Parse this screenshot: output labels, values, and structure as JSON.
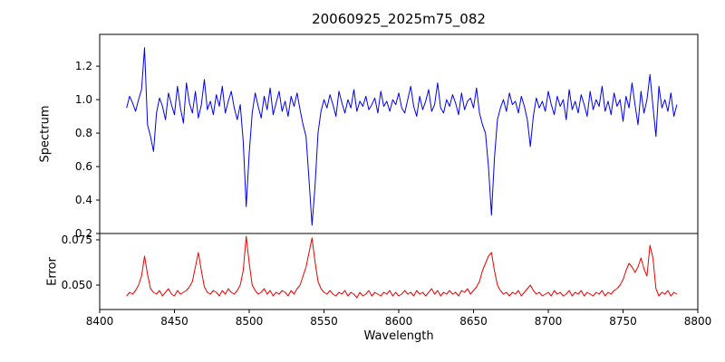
{
  "chart_data": {
    "type": "line",
    "title": "20060925_2025m75_082",
    "xlabel": "Wavelength",
    "xlim": [
      8400,
      8800
    ],
    "x_ticks": [
      8400,
      8450,
      8500,
      8550,
      8600,
      8650,
      8700,
      8750,
      8800
    ],
    "grid": false,
    "legend": "none",
    "panels": [
      {
        "name": "spectrum",
        "ylabel": "Spectrum",
        "ylim": [
          0.2,
          1.39
        ],
        "yticks": [
          0.2,
          0.4,
          0.6,
          0.8,
          1.0,
          1.2
        ],
        "ytick_labels": [
          "0.2",
          "0.4",
          "0.6",
          "0.8",
          "1.0",
          "1.2"
        ],
        "color": "#0000ee",
        "x_start": 8418,
        "x_step": 2,
        "features": "noisy continuum near 1.0 with absorption dips at 8498 (0.36), 8542 (0.25), 8662 (0.31), 8688 (0.72); spike to 1.31 near 8430",
        "values": [
          0.95,
          1.02,
          0.98,
          0.93,
          1.0,
          1.06,
          1.31,
          0.85,
          0.78,
          0.69,
          0.92,
          1.01,
          0.96,
          0.88,
          1.04,
          0.97,
          0.91,
          1.08,
          0.95,
          0.86,
          1.1,
          0.98,
          0.92,
          1.05,
          0.89,
          0.97,
          1.12,
          0.94,
          0.99,
          0.91,
          1.03,
          0.96,
          1.08,
          0.92,
          0.99,
          1.05,
          0.95,
          0.88,
          0.97,
          0.75,
          0.36,
          0.68,
          0.92,
          1.04,
          0.96,
          0.89,
          1.02,
          0.94,
          1.07,
          0.91,
          0.98,
          1.05,
          0.93,
          0.99,
          0.9,
          1.02,
          0.96,
          1.04,
          0.94,
          0.85,
          0.78,
          0.52,
          0.25,
          0.48,
          0.8,
          0.93,
          1.0,
          0.95,
          1.03,
          0.97,
          0.9,
          1.05,
          0.98,
          0.92,
          1.0,
          0.95,
          1.06,
          0.93,
          0.99,
          0.96,
          1.02,
          0.94,
          0.97,
          1.01,
          0.92,
          1.05,
          0.96,
          0.99,
          0.93,
          1.0,
          0.97,
          1.04,
          0.95,
          0.92,
          1.0,
          1.08,
          0.96,
          0.9,
          1.02,
          0.94,
          0.99,
          1.06,
          0.93,
          0.97,
          1.1,
          0.95,
          0.92,
          1.0,
          0.96,
          1.03,
          0.98,
          0.91,
          1.04,
          0.94,
          0.99,
          1.01,
          0.95,
          1.07,
          0.92,
          0.85,
          0.8,
          0.6,
          0.31,
          0.65,
          0.88,
          0.95,
          1.0,
          0.93,
          1.04,
          0.97,
          0.99,
          0.92,
          1.02,
          0.96,
          0.88,
          0.72,
          0.9,
          1.01,
          0.95,
          0.99,
          0.93,
          1.05,
          0.97,
          0.91,
          1.02,
          0.96,
          1.0,
          0.88,
          1.06,
          0.94,
          0.99,
          0.92,
          1.03,
          0.97,
          0.9,
          1.05,
          0.94,
          1.0,
          0.96,
          1.08,
          0.93,
          0.99,
          0.91,
          1.04,
          0.96,
          1.0,
          0.87,
          1.02,
          0.95,
          1.1,
          0.97,
          0.85,
          1.05,
          0.92,
          1.0,
          1.15,
          0.96,
          0.78,
          1.08,
          0.95,
          1.0,
          0.93,
          1.04,
          0.9,
          0.97
        ]
      },
      {
        "name": "error",
        "ylabel": "Error",
        "ylim": [
          0.0365,
          0.0785
        ],
        "yticks": [
          0.05,
          0.075
        ],
        "ytick_labels": [
          "0.050",
          "0.075"
        ],
        "color": "#ee0000",
        "x_start": 8418,
        "x_step": 2,
        "features": "baseline near 0.045 with peaks ~0.077 at 8498 and 8542, ~0.068 at 8430/8466/8662, ~0.072 near 8768",
        "values": [
          0.044,
          0.046,
          0.045,
          0.047,
          0.05,
          0.055,
          0.066,
          0.056,
          0.048,
          0.046,
          0.045,
          0.047,
          0.044,
          0.046,
          0.048,
          0.045,
          0.044,
          0.047,
          0.045,
          0.046,
          0.047,
          0.049,
          0.052,
          0.06,
          0.068,
          0.058,
          0.049,
          0.046,
          0.045,
          0.047,
          0.046,
          0.044,
          0.047,
          0.045,
          0.048,
          0.046,
          0.045,
          0.047,
          0.05,
          0.058,
          0.077,
          0.062,
          0.05,
          0.047,
          0.045,
          0.046,
          0.048,
          0.045,
          0.047,
          0.044,
          0.046,
          0.045,
          0.047,
          0.046,
          0.044,
          0.047,
          0.045,
          0.048,
          0.05,
          0.055,
          0.06,
          0.068,
          0.076,
          0.063,
          0.052,
          0.048,
          0.046,
          0.045,
          0.047,
          0.045,
          0.044,
          0.046,
          0.045,
          0.047,
          0.044,
          0.046,
          0.045,
          0.043,
          0.046,
          0.044,
          0.045,
          0.047,
          0.044,
          0.046,
          0.045,
          0.044,
          0.046,
          0.045,
          0.047,
          0.044,
          0.046,
          0.044,
          0.045,
          0.047,
          0.045,
          0.046,
          0.044,
          0.047,
          0.045,
          0.046,
          0.044,
          0.046,
          0.048,
          0.045,
          0.047,
          0.044,
          0.046,
          0.045,
          0.047,
          0.045,
          0.046,
          0.044,
          0.047,
          0.046,
          0.048,
          0.045,
          0.047,
          0.049,
          0.052,
          0.058,
          0.062,
          0.066,
          0.068,
          0.058,
          0.05,
          0.047,
          0.045,
          0.046,
          0.044,
          0.046,
          0.045,
          0.047,
          0.044,
          0.046,
          0.048,
          0.05,
          0.047,
          0.045,
          0.046,
          0.044,
          0.045,
          0.046,
          0.044,
          0.047,
          0.045,
          0.046,
          0.044,
          0.045,
          0.047,
          0.044,
          0.046,
          0.045,
          0.047,
          0.044,
          0.046,
          0.045,
          0.044,
          0.046,
          0.045,
          0.047,
          0.044,
          0.046,
          0.045,
          0.047,
          0.048,
          0.05,
          0.053,
          0.058,
          0.062,
          0.06,
          0.057,
          0.06,
          0.065,
          0.059,
          0.055,
          0.072,
          0.065,
          0.048,
          0.044,
          0.046,
          0.045,
          0.047,
          0.044,
          0.046,
          0.045
        ]
      }
    ]
  }
}
